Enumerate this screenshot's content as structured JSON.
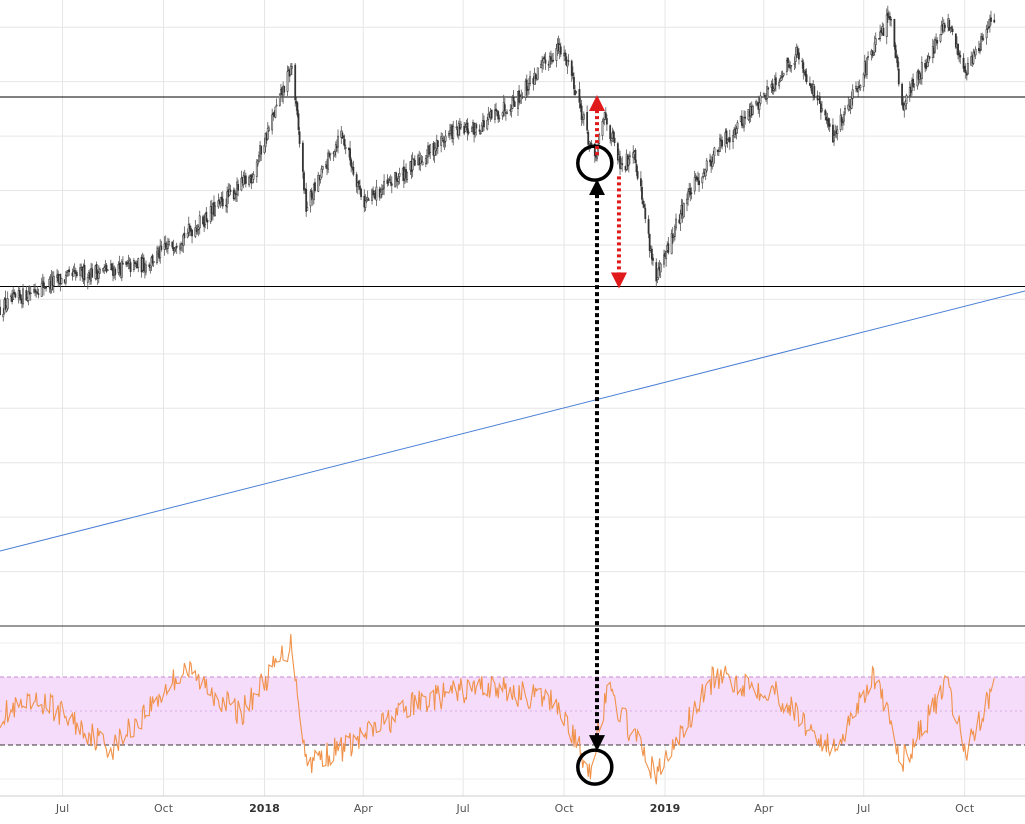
{
  "chart_data": {
    "type": "candlestick",
    "x_tick_labels": [
      {
        "label": "Jul",
        "date": "2017-07-01"
      },
      {
        "label": "Oct",
        "date": "2017-10-01"
      },
      {
        "label": "2018",
        "date": "2018-01-01",
        "bold": true
      },
      {
        "label": "Apr",
        "date": "2018-04-01"
      },
      {
        "label": "Jul",
        "date": "2018-07-01"
      },
      {
        "label": "Oct",
        "date": "2018-10-01"
      },
      {
        "label": "2019",
        "date": "2019-01-01",
        "bold": true
      },
      {
        "label": "Apr",
        "date": "2019-04-01"
      },
      {
        "label": "Jul",
        "date": "2019-07-01"
      },
      {
        "label": "Oct",
        "date": "2019-10-01"
      }
    ],
    "x_range": [
      "2017-05-05",
      "2019-11-25"
    ],
    "grid": true,
    "price_panel": {
      "price_path": [
        {
          "date": "2017-05-05",
          "price": 0.72
        },
        {
          "date": "2017-06-10",
          "price": 0.77
        },
        {
          "date": "2017-07-20",
          "price": 0.8
        },
        {
          "date": "2017-09-15",
          "price": 0.82
        },
        {
          "date": "2017-11-01",
          "price": 0.91
        },
        {
          "date": "2017-12-20",
          "price": 1.02
        },
        {
          "date": "2018-01-26",
          "price": 1.27
        },
        {
          "date": "2018-02-08",
          "price": 0.95
        },
        {
          "date": "2018-03-12",
          "price": 1.12
        },
        {
          "date": "2018-04-02",
          "price": 0.96
        },
        {
          "date": "2018-05-15",
          "price": 1.04
        },
        {
          "date": "2018-06-20",
          "price": 1.12
        },
        {
          "date": "2018-07-15",
          "price": 1.13
        },
        {
          "date": "2018-08-20",
          "price": 1.2
        },
        {
          "date": "2018-09-25",
          "price": 1.31
        },
        {
          "date": "2018-10-05",
          "price": 1.28
        },
        {
          "date": "2018-10-29",
          "price": 1.05
        },
        {
          "date": "2018-11-07",
          "price": 1.16
        },
        {
          "date": "2018-11-23",
          "price": 1.03
        },
        {
          "date": "2018-12-03",
          "price": 1.09
        },
        {
          "date": "2018-12-24",
          "price": 0.78
        },
        {
          "date": "2019-01-20",
          "price": 0.97
        },
        {
          "date": "2019-02-20",
          "price": 1.09
        },
        {
          "date": "2019-03-25",
          "price": 1.18
        },
        {
          "date": "2019-05-01",
          "price": 1.3
        },
        {
          "date": "2019-06-03",
          "price": 1.11
        },
        {
          "date": "2019-07-26",
          "price": 1.39
        },
        {
          "date": "2019-08-05",
          "price": 1.18
        },
        {
          "date": "2019-09-15",
          "price": 1.37
        },
        {
          "date": "2019-10-02",
          "price": 1.26
        },
        {
          "date": "2019-10-28",
          "price": 1.38
        }
      ],
      "price_range": [
        0.0,
        1.42
      ],
      "horizontal_levels": [
        {
          "name": "resistance-line",
          "price": 1.2,
          "color": "#000000"
        },
        {
          "name": "support-line",
          "price": 0.77,
          "color": "#000000"
        }
      ],
      "trendline": {
        "color": "#4a7fd6",
        "start": {
          "date": "2017-05-05",
          "price": 0.17
        },
        "end": {
          "date": "2019-11-25",
          "price": 0.76
        }
      },
      "colors": {
        "candle": "#333333",
        "wick": "#555555"
      }
    },
    "indicator_panel": {
      "type": "line",
      "line_color": "#f0924a",
      "band_fill": "#f5dcfa",
      "band_border_color": "#c58ad6",
      "range": [
        0,
        100
      ],
      "band": [
        30,
        70
      ],
      "midline": 50,
      "lower_dashed_color": "#333333",
      "path": [
        {
          "date": "2017-05-05",
          "value": 48
        },
        {
          "date": "2017-06-15",
          "value": 55
        },
        {
          "date": "2017-08-15",
          "value": 28
        },
        {
          "date": "2017-10-20",
          "value": 75
        },
        {
          "date": "2017-12-10",
          "value": 48
        },
        {
          "date": "2018-01-26",
          "value": 90
        },
        {
          "date": "2018-02-08",
          "value": 20
        },
        {
          "date": "2018-03-20",
          "value": 30
        },
        {
          "date": "2018-05-20",
          "value": 55
        },
        {
          "date": "2018-07-20",
          "value": 65
        },
        {
          "date": "2018-09-25",
          "value": 55
        },
        {
          "date": "2018-10-24",
          "value": 15
        },
        {
          "date": "2018-11-10",
          "value": 62
        },
        {
          "date": "2018-12-24",
          "value": 12
        },
        {
          "date": "2019-02-15",
          "value": 70
        },
        {
          "date": "2019-04-10",
          "value": 62
        },
        {
          "date": "2019-06-03",
          "value": 26
        },
        {
          "date": "2019-07-10",
          "value": 72
        },
        {
          "date": "2019-08-05",
          "value": 20
        },
        {
          "date": "2019-09-15",
          "value": 65
        },
        {
          "date": "2019-10-02",
          "value": 26
        },
        {
          "date": "2019-10-28",
          "value": 65
        }
      ]
    },
    "annotations": {
      "circle_price": {
        "date": "2018-10-29",
        "price": 1.05,
        "color": "#000000"
      },
      "circle_indicator": {
        "date": "2018-10-29",
        "value": 17,
        "color": "#000000"
      },
      "red_arrow_up": {
        "date": "2018-10-31",
        "from_price": 1.05,
        "to_price": 1.2,
        "color": "#e0191a"
      },
      "red_arrow_down": {
        "date": "2018-11-20",
        "from_price": 1.02,
        "to_price": 0.77,
        "color": "#e0191a"
      },
      "black_arrow_vertical": {
        "date": "2018-10-31",
        "from": "circle_price",
        "to": "circle_indicator",
        "color": "#000000"
      }
    }
  }
}
